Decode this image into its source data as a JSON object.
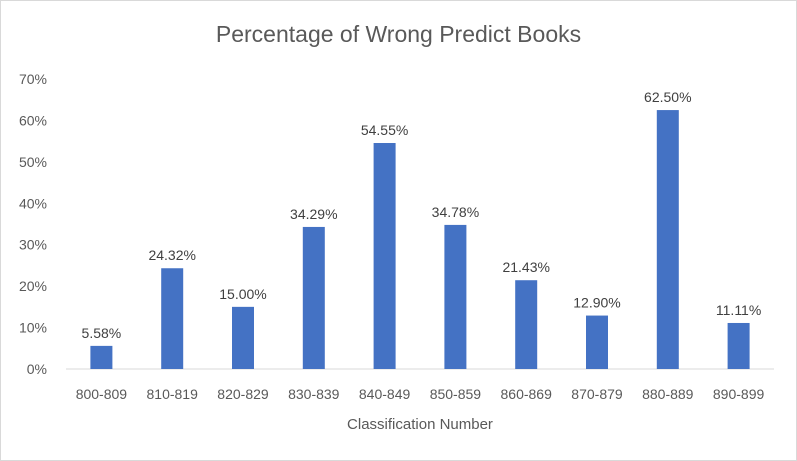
{
  "chart_data": {
    "type": "bar",
    "title": "Percentage of Wrong Predict Books",
    "xlabel": "Classification Number",
    "ylabel": "",
    "categories": [
      "800-809",
      "810-819",
      "820-829",
      "830-839",
      "840-849",
      "850-859",
      "860-869",
      "870-879",
      "880-889",
      "890-899"
    ],
    "series": [
      {
        "values": [
          5.58,
          24.32,
          15.0,
          34.29,
          54.55,
          34.78,
          21.43,
          12.9,
          62.5,
          11.11
        ],
        "data_labels": [
          "5.58%",
          "24.32%",
          "15.00%",
          "34.29%",
          "54.55%",
          "34.78%",
          "21.43%",
          "12.90%",
          "62.50%",
          "11.11%"
        ]
      }
    ],
    "ylim": [
      0,
      70
    ],
    "yticks": [
      0,
      10,
      20,
      30,
      40,
      50,
      60,
      70
    ],
    "ytick_labels": [
      "0%",
      "10%",
      "20%",
      "30%",
      "40%",
      "50%",
      "60%",
      "70%"
    ],
    "grid": false,
    "legend": "none",
    "bar_color": "#4472c4"
  }
}
